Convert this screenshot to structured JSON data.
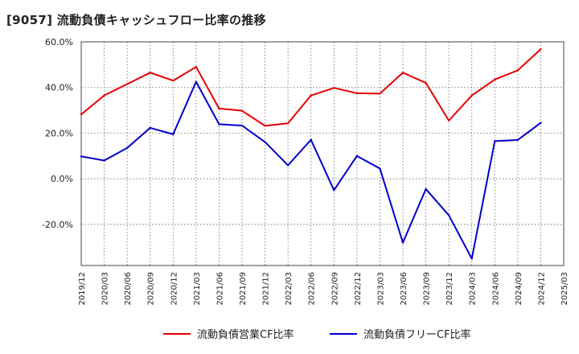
{
  "page": {
    "title": "[9057]  流動負債キャッシュフロー比率の推移"
  },
  "chart_data": {
    "type": "line",
    "title": "[9057]  流動負債キャッシュフロー比率の推移",
    "xlabel": "",
    "ylabel": "",
    "y_tick_labels": [
      "60.0%",
      "40.0%",
      "20.0%",
      "0.0%",
      "-20.0%"
    ],
    "y_tick_values": [
      60,
      40,
      20,
      0,
      -20
    ],
    "ylim": [
      -38,
      60
    ],
    "x_tick_labels": [
      "2019/12",
      "2020/03",
      "2020/06",
      "2020/09",
      "2020/12",
      "2021/03",
      "2021/06",
      "2021/09",
      "2021/12",
      "2022/03",
      "2022/06",
      "2022/09",
      "2022/12",
      "2023/03",
      "2023/06",
      "2023/09",
      "2023/12",
      "2024/03",
      "2024/06",
      "2024/09",
      "2024/12",
      "2025/03"
    ],
    "grid": true,
    "legend_position": "bottom",
    "series": [
      {
        "name": "流動負債営業CF比率",
        "color": "#e60000",
        "values": [
          28.2,
          36.5,
          41.5,
          46.5,
          43.0,
          49.0,
          30.8,
          29.8,
          23.2,
          24.3,
          36.5,
          39.8,
          37.5,
          37.3,
          46.5,
          42.0,
          25.5,
          36.5,
          43.5,
          47.5,
          56.8,
          null
        ]
      },
      {
        "name": "流動負債フリーCF比率",
        "color": "#0000cc",
        "values": [
          9.8,
          8.0,
          13.5,
          22.3,
          19.5,
          42.5,
          23.9,
          23.3,
          16.1,
          5.9,
          17.1,
          -5.0,
          10.0,
          4.5,
          -28.0,
          -4.5,
          -16.0,
          -35.0,
          16.5,
          17.0,
          24.5,
          null
        ]
      }
    ]
  }
}
